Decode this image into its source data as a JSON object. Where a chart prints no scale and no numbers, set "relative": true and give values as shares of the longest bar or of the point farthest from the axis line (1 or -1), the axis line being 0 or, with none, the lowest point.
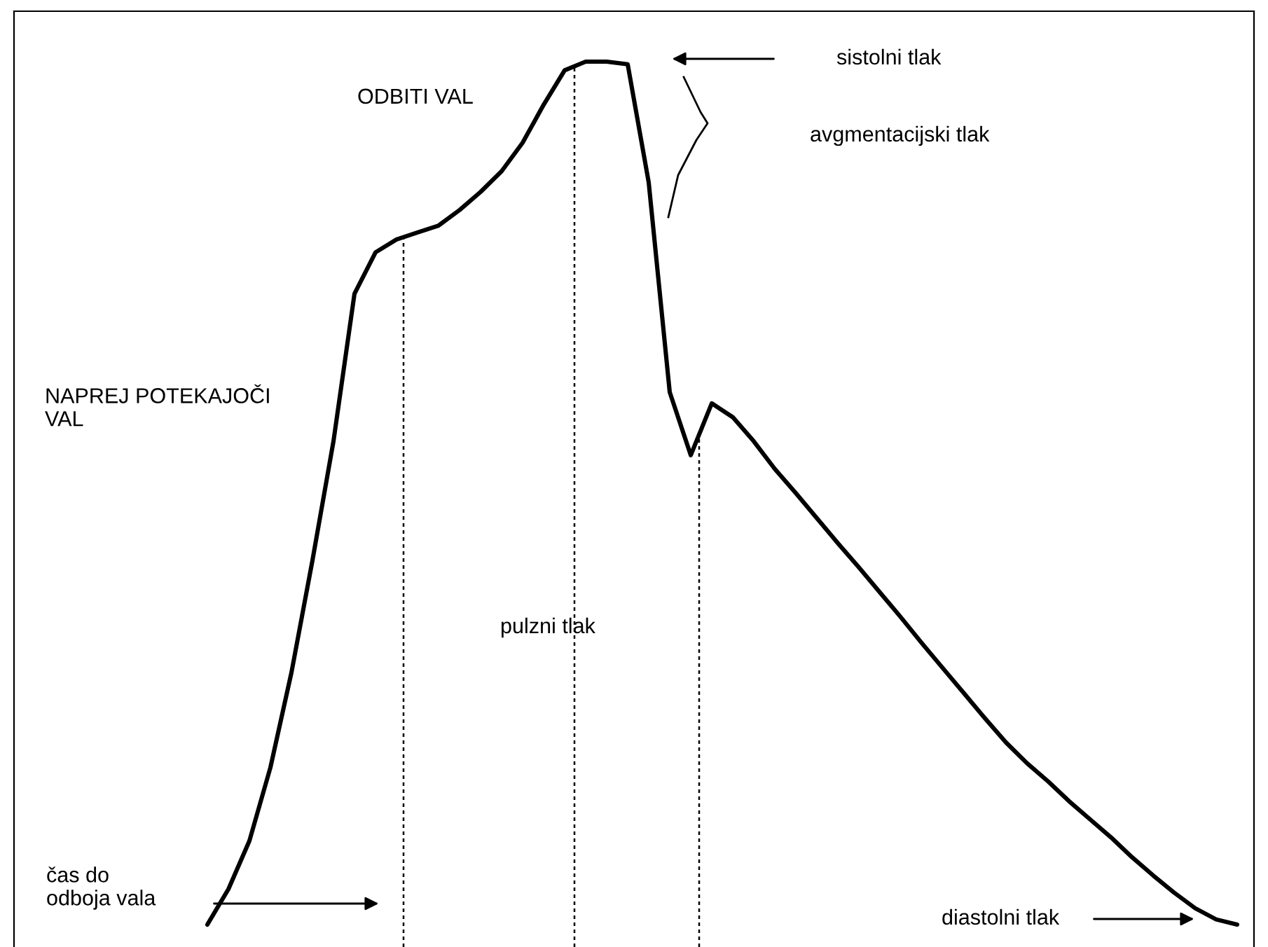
{
  "chart_data": {
    "type": "line",
    "relative": true,
    "color": "#000000",
    "categories": [
      null,
      null,
      null,
      null,
      null,
      null,
      null,
      null,
      null,
      null,
      null,
      null,
      null,
      null,
      null,
      null,
      null,
      null,
      null,
      null,
      null,
      null,
      null,
      null,
      null,
      null,
      null,
      null,
      null,
      null,
      null,
      null,
      null,
      null,
      null,
      null,
      null,
      null,
      null,
      null,
      null,
      null,
      null,
      null,
      null,
      null,
      null,
      null,
      null,
      null
    ],
    "values": [
      0,
      0.041,
      0.097,
      0.182,
      0.292,
      0.422,
      0.56,
      0.731,
      0.779,
      0.794,
      0.802,
      0.81,
      0.828,
      0.849,
      0.873,
      0.906,
      0.95,
      0.99,
      1,
      1,
      0.997,
      0.86,
      0.617,
      0.544,
      0.604,
      0.588,
      0.56,
      0.528,
      0.5,
      0.471,
      0.442,
      0.414,
      0.385,
      0.356,
      0.326,
      0.297,
      0.268,
      0.239,
      0.211,
      0.187,
      0.166,
      0.143,
      0.122,
      0.101,
      0.078,
      0.057,
      0.037,
      0.019,
      0.006,
      0
    ],
    "annotations": [
      "ODBITI VAL",
      "sistolni tlak",
      "avgmentacijski tlak",
      "NAPREJ POTEKAJOČI\nVAL",
      "pulzni tlak",
      "čas do\nodboja vala",
      "diastolni tlak"
    ],
    "legend": false
  }
}
